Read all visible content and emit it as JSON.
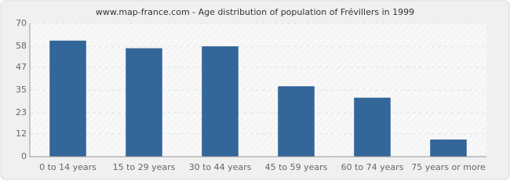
{
  "chart_data": {
    "type": "bar",
    "title": "www.map-france.com - Age distribution of population of Frévillers in 1999",
    "categories": [
      "0 to 14 years",
      "15 to 29 years",
      "30 to 44 years",
      "45 to 59 years",
      "60 to 74 years",
      "75 years or more"
    ],
    "values": [
      61,
      57,
      58,
      37,
      31,
      9
    ],
    "color": "#336699",
    "ylim": [
      0,
      70
    ],
    "yticks": [
      0,
      12,
      23,
      35,
      47,
      58,
      70
    ],
    "grid": true
  }
}
